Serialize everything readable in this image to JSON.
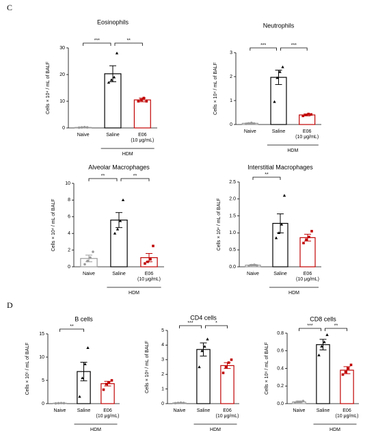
{
  "panels": [
    "C",
    "D"
  ],
  "chart_data": [
    {
      "type": "bar",
      "title": "Eosinophils",
      "ylabel": "Cells × 10⁴ / mL of BALF",
      "categories": [
        "Naive",
        "Saline",
        [
          "E06",
          "(10 μg/mL)"
        ]
      ],
      "group": {
        "label": "HDM",
        "from": 1,
        "to": 2
      },
      "colors": [
        "#9a9a9a",
        "#000000",
        "#c00000"
      ],
      "markers": [
        "circle",
        "triangle",
        "square"
      ],
      "values": [
        0.2,
        20.3,
        10.5
      ],
      "errors": [
        0.1,
        3.0,
        0.7
      ],
      "points": [
        [
          0.1,
          0.2,
          0.3,
          0.2
        ],
        [
          17,
          18,
          19,
          28
        ],
        [
          10,
          10.5,
          11.2,
          10
        ]
      ],
      "ylim": [
        0,
        30
      ],
      "yticks": [
        0,
        10,
        20,
        30
      ],
      "significance": [
        {
          "from": 0,
          "to": 1,
          "label": "***"
        },
        {
          "from": 1,
          "to": 2,
          "label": "**"
        }
      ]
    },
    {
      "type": "bar",
      "title": "Neutrophils",
      "ylabel": "Cells × 10⁴ / mL of BALF",
      "categories": [
        "Naive",
        "Saline",
        [
          "E06",
          "(10 μg/mL)"
        ]
      ],
      "group": {
        "label": "HDM",
        "from": 1,
        "to": 2
      },
      "colors": [
        "#9a9a9a",
        "#000000",
        "#c00000"
      ],
      "markers": [
        "circle",
        "triangle",
        "square"
      ],
      "values": [
        0.05,
        1.97,
        0.4
      ],
      "errors": [
        0.02,
        0.3,
        0.04
      ],
      "points": [
        [
          0.03,
          0.05,
          0.07,
          0.04
        ],
        [
          0.95,
          1.95,
          2.2,
          2.4
        ],
        [
          0.36,
          0.4,
          0.44,
          0.42
        ]
      ],
      "ylim": [
        0,
        3
      ],
      "yticks": [
        0,
        1,
        2,
        3
      ],
      "significance": [
        {
          "from": 0,
          "to": 1,
          "label": "***"
        },
        {
          "from": 1,
          "to": 2,
          "label": "***"
        }
      ]
    },
    {
      "type": "bar",
      "title": "Alveolar Macrophages",
      "ylabel": "Cells × 10⁴ / mL of BALF",
      "categories": [
        "Naive",
        "Saline",
        [
          "E06",
          "(10 μg/mL)"
        ]
      ],
      "group": {
        "label": "HDM",
        "from": 1,
        "to": 2
      },
      "colors": [
        "#9a9a9a",
        "#000000",
        "#c00000"
      ],
      "markers": [
        "circle",
        "triangle",
        "square"
      ],
      "values": [
        1.0,
        5.6,
        1.1
      ],
      "errors": [
        0.4,
        0.9,
        0.5
      ],
      "points": [
        [
          0.3,
          0.7,
          1.1,
          1.8
        ],
        [
          4.0,
          4.5,
          5.5,
          8.0
        ],
        [
          0.4,
          0.6,
          0.9,
          2.5
        ]
      ],
      "ylim": [
        0,
        10
      ],
      "yticks": [
        0,
        2,
        4,
        6,
        8,
        10
      ],
      "significance": [
        {
          "from": 0,
          "to": 1,
          "label": "**"
        },
        {
          "from": 1,
          "to": 2,
          "label": "**"
        }
      ]
    },
    {
      "type": "bar",
      "title": "Interstitial Macrophages",
      "ylabel": "Cells × 10⁴ / mL of BALF",
      "categories": [
        "Naive",
        "Saline",
        [
          "E06",
          "(10 μg/mL)"
        ]
      ],
      "group": {
        "label": "HDM",
        "from": 1,
        "to": 2
      },
      "colors": [
        "#9a9a9a",
        "#000000",
        "#c00000"
      ],
      "markers": [
        "circle",
        "triangle",
        "square"
      ],
      "values": [
        0.05,
        1.28,
        0.86
      ],
      "errors": [
        0.02,
        0.28,
        0.1
      ],
      "points": [
        [
          0.03,
          0.05,
          0.06,
          0.04
        ],
        [
          0.85,
          1.0,
          1.25,
          2.1
        ],
        [
          0.7,
          0.8,
          0.88,
          1.05
        ]
      ],
      "ylim": [
        0,
        2.5
      ],
      "yticks": [
        {
          "value": 0,
          "label": "0.0"
        },
        0.5,
        {
          "value": 1,
          "label": "1.0"
        },
        1.5,
        {
          "value": 2,
          "label": "2.0"
        },
        2.5
      ],
      "significance": [
        {
          "from": 0,
          "to": 1,
          "label": "**"
        }
      ]
    },
    {
      "type": "bar",
      "title": "B cells",
      "ylabel": "Cells × 10⁵ / mL of BALF",
      "categories": [
        "Naive",
        "Saline",
        [
          "E06",
          "(10 μg/mL)"
        ]
      ],
      "group": {
        "label": "HDM",
        "from": 1,
        "to": 2
      },
      "colors": [
        "#9a9a9a",
        "#000000",
        "#c00000"
      ],
      "markers": [
        "circle",
        "triangle",
        "square"
      ],
      "values": [
        0.1,
        6.9,
        4.3
      ],
      "errors": [
        0.05,
        2.0,
        0.5
      ],
      "points": [
        [
          0.05,
          0.1,
          0.12,
          0.1
        ],
        [
          1.5,
          5.5,
          8.5,
          12.0
        ],
        [
          3.0,
          4.2,
          4.5,
          5.0
        ]
      ],
      "ylim": [
        0,
        15
      ],
      "yticks": [
        0,
        5,
        10,
        15
      ],
      "significance": [
        {
          "from": 0,
          "to": 1,
          "label": "**"
        }
      ]
    },
    {
      "type": "bar",
      "title": "CD4 cells",
      "ylabel": "Cells × 10⁶ / mL of BALF",
      "categories": [
        "Naive",
        "Saline",
        [
          "E06",
          "(10 μg/mL)"
        ]
      ],
      "group": {
        "label": "HDM",
        "from": 1,
        "to": 2
      },
      "colors": [
        "#9a9a9a",
        "#000000",
        "#c00000"
      ],
      "markers": [
        "circle",
        "triangle",
        "square"
      ],
      "values": [
        0.05,
        3.7,
        2.6
      ],
      "errors": [
        0.02,
        0.45,
        0.2
      ],
      "points": [
        [
          0.03,
          0.05,
          0.07,
          0.05
        ],
        [
          2.5,
          3.6,
          3.9,
          4.4
        ],
        [
          2.1,
          2.5,
          2.8,
          3.0
        ]
      ],
      "ylim": [
        0,
        5
      ],
      "yticks": [
        0,
        1,
        2,
        3,
        4,
        5
      ],
      "significance": [
        {
          "from": 0,
          "to": 1,
          "label": "***"
        },
        {
          "from": 1,
          "to": 2,
          "label": "*"
        }
      ]
    },
    {
      "type": "bar",
      "title": "CD8 cells",
      "ylabel": "Cells × 10⁶ / mL of BALF",
      "categories": [
        "Naive",
        "Saline",
        [
          "E06",
          "(10 μg/mL)"
        ]
      ],
      "group": {
        "label": "HDM",
        "from": 1,
        "to": 2
      },
      "colors": [
        "#9a9a9a",
        "#000000",
        "#c00000"
      ],
      "markers": [
        "circle",
        "triangle",
        "square"
      ],
      "values": [
        0.02,
        0.67,
        0.38
      ],
      "errors": [
        0.01,
        0.06,
        0.04
      ],
      "points": [
        [
          0.01,
          0.02,
          0.02,
          0.03
        ],
        [
          0.55,
          0.65,
          0.7,
          0.78
        ],
        [
          0.33,
          0.36,
          0.4,
          0.44
        ]
      ],
      "ylim": [
        0,
        0.8
      ],
      "yticks": [
        {
          "value": 0,
          "label": "0.0"
        },
        0.2,
        0.4,
        0.6,
        0.8
      ],
      "significance": [
        {
          "from": 0,
          "to": 1,
          "label": "***"
        },
        {
          "from": 1,
          "to": 2,
          "label": "**"
        }
      ]
    }
  ]
}
